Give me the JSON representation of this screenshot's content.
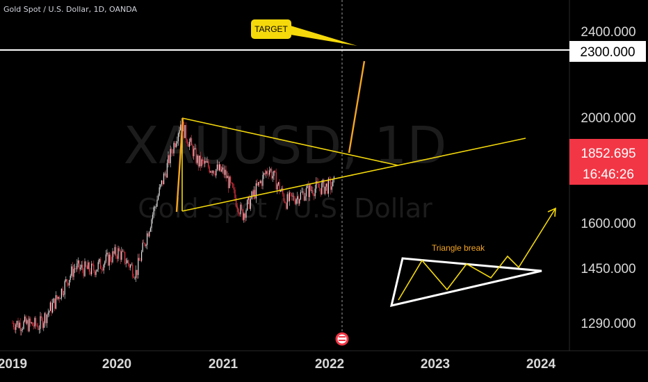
{
  "header": {
    "symbol_title": "Gold Spot / U.S. Dollar, 1D, OANDA"
  },
  "watermark": {
    "main": "XAUUSD, 1D",
    "sub": "Gold Spot / U.S. Dollar"
  },
  "price_axis": {
    "ticks": [
      "2400.000",
      "2000.000",
      "1600.000",
      "1450.000",
      "1290.000"
    ],
    "target_level_label": "2300.000",
    "last_price_label": "1852.695",
    "countdown_label": "16:46:26",
    "last_price_color": "#f23645"
  },
  "time_axis": {
    "ticks": [
      "2019",
      "2020",
      "2021",
      "2022",
      "2023",
      "2024"
    ]
  },
  "annotations": {
    "target_label": "TARGET",
    "target_color": "#f5d90a",
    "triangle_break_label": "Triangle break",
    "triangle_break_color": "#f5a623",
    "pattern_color": "#f5d90a",
    "breakout_color": "#f5a623"
  },
  "chart_data": {
    "type": "candlestick",
    "symbol": "XAUUSD",
    "timeframe": "1D",
    "x": [
      "2019-01",
      "2019-04",
      "2019-06",
      "2019-08",
      "2019-10",
      "2020-01",
      "2020-03",
      "2020-05",
      "2020-07",
      "2020-08",
      "2020-10",
      "2021-01",
      "2021-03",
      "2021-06",
      "2021-08",
      "2021-11",
      "2022-01",
      "2022-03"
    ],
    "close": [
      1290,
      1280,
      1380,
      1500,
      1490,
      1560,
      1480,
      1720,
      1940,
      2050,
      1900,
      1860,
      1700,
      1880,
      1750,
      1800,
      1810,
      1852.7
    ],
    "last_price": 1852.695,
    "horizontal_level": 2300,
    "yrange": [
      1230,
      2470
    ]
  }
}
